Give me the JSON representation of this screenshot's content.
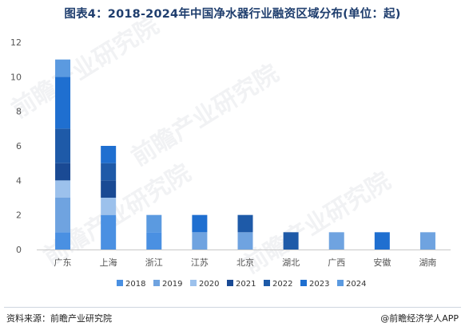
{
  "title": "图表4：2018-2024年中国净水器行业融资区域分布(单位：起)",
  "footer": {
    "source": "资料来源：前瞻产业研究院",
    "brand": "@前瞻经济学人APP"
  },
  "watermarks": [
    "前瞻产业研究院",
    "前瞻产业研究院",
    "前瞻产业研究院",
    "前瞻产业研究院"
  ],
  "colors": {
    "2018": "#4a90e2",
    "2019": "#6fa3e0",
    "2020": "#9cc1ec",
    "2021": "#1a4a94",
    "2022": "#1e5aa8",
    "2023": "#1f6fd0",
    "2024": "#5b9ae0"
  },
  "chart_data": {
    "type": "bar",
    "stacked": true,
    "title": "图表4：2018-2024年中国净水器行业融资区域分布(单位：起)",
    "xlabel": "",
    "ylabel": "",
    "ylim": [
      0,
      12
    ],
    "yticks": [
      0,
      2,
      4,
      6,
      8,
      10,
      12
    ],
    "grid": false,
    "legend": "bottom",
    "categories": [
      "广东",
      "上海",
      "浙江",
      "江苏",
      "北京",
      "湖北",
      "广西",
      "安徽",
      "湖南"
    ],
    "series": [
      {
        "name": "2018",
        "values": [
          1,
          2,
          1,
          0,
          0,
          0,
          0,
          0,
          0
        ]
      },
      {
        "name": "2019",
        "values": [
          2,
          0,
          0,
          1,
          1,
          0,
          1,
          0,
          1
        ]
      },
      {
        "name": "2020",
        "values": [
          1,
          1,
          0,
          0,
          0,
          0,
          0,
          0,
          0
        ]
      },
      {
        "name": "2021",
        "values": [
          1,
          1,
          0,
          0,
          0,
          0,
          0,
          0,
          0
        ]
      },
      {
        "name": "2022",
        "values": [
          2,
          1,
          0,
          0,
          1,
          1,
          0,
          0,
          0
        ]
      },
      {
        "name": "2023",
        "values": [
          3,
          1,
          0,
          1,
          0,
          0,
          0,
          1,
          0
        ]
      },
      {
        "name": "2024",
        "values": [
          1,
          0,
          1,
          0,
          0,
          0,
          0,
          0,
          0
        ]
      }
    ]
  }
}
